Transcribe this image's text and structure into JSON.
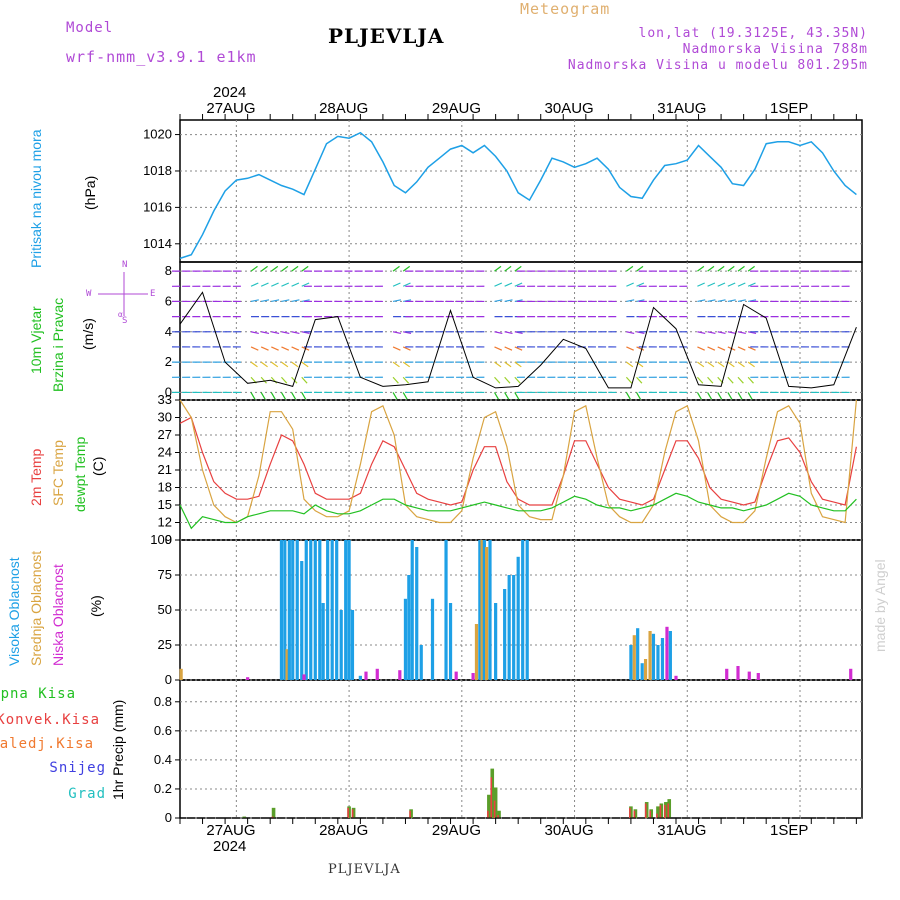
{
  "header": {
    "model_label": "Model",
    "model_name": "wrf-nmm_v3.9.1  e1km",
    "meteogram_label": "Meteogram",
    "station": "PLJEVLJA",
    "lonlat": "lon,lat (19.3125E, 43.35N)",
    "altitude": "Nadmorska Visina 788m",
    "model_altitude": "Nadmorska Visina u modelu 801.295m"
  },
  "top_dates": {
    "year": "2024",
    "days": [
      "27AUG",
      "28AUG",
      "29AUG",
      "30AUG",
      "31AUG",
      "1SEP"
    ]
  },
  "bottom_dates": {
    "year": "2024",
    "days": [
      "27AUG",
      "28AUG",
      "29AUG",
      "30AUG",
      "31AUG",
      "1SEP"
    ]
  },
  "footer_station": "PLJEVLJA",
  "watermark": "made by Angel",
  "colors": {
    "pressure": "#1ea0e6",
    "t2m": "#e84040",
    "tsfc": "#d9a441",
    "dewpt": "#22c022",
    "high_cloud": "#1ea0e6",
    "mid_cloud": "#d9a441",
    "low_cloud": "#d12bd1",
    "total_precip": "#5a9e2a",
    "conv_precip": "#e84040",
    "frozen_precip": "#f07a30",
    "snow": "#4040e0",
    "grad": "#22c0c0",
    "wind_speed": "#000000"
  },
  "panels": {
    "pressure": {
      "label": "Pritisak na nivou mora",
      "unit": "(hPa)"
    },
    "wind": {
      "label1": "10m Vjetar",
      "label2": "Brzina i Pravac",
      "unit": "(m/s)",
      "compass": {
        "n": "N",
        "w": "W",
        "e": "E",
        "s": "S",
        "alpha": "α"
      }
    },
    "temp": {
      "label1": "2m Temp",
      "label2": "SFC Temp",
      "label3": "dewpt Temp",
      "unit": "(C)"
    },
    "cloud": {
      "label1": "Visoka Oblacnost",
      "label2": "Srednja Oblacnost",
      "label3": "Niska Oblacnost",
      "unit": "(%)"
    },
    "precip": {
      "labels": [
        "Ukupna Kisa",
        "Konvek.Kisa",
        "Zaledj.Kisa",
        "Snijeg",
        "Grad"
      ],
      "unit": "1hr Precip (mm)"
    }
  },
  "chart_data": [
    {
      "type": "line",
      "name": "pressure",
      "ylim": [
        1013,
        1020.8
      ],
      "yticks": [
        1014,
        1016,
        1018,
        1020
      ],
      "x": [
        0,
        1,
        2,
        3,
        4,
        5,
        6,
        7,
        8,
        9,
        10,
        11,
        12,
        13,
        14,
        15,
        16,
        17,
        18,
        19,
        20,
        21,
        22,
        23,
        24,
        25,
        26,
        27,
        28,
        29,
        30,
        31,
        32,
        33,
        34,
        35,
        36,
        37,
        38,
        39,
        40,
        41,
        42,
        43,
        44,
        45,
        46,
        47,
        48,
        49,
        50,
        51,
        52,
        53,
        54,
        55,
        56,
        57,
        58,
        59,
        60
      ],
      "series": [
        {
          "values": [
            1013.2,
            1013.4,
            1014.5,
            1015.8,
            1016.9,
            1017.5,
            1017.6,
            1017.8,
            1017.5,
            1017.2,
            1017.0,
            1016.7,
            1018.1,
            1019.5,
            1019.9,
            1019.8,
            1020.1,
            1019.6,
            1018.5,
            1017.2,
            1016.8,
            1017.4,
            1018.2,
            1018.7,
            1019.2,
            1019.4,
            1019.0,
            1019.4,
            1018.8,
            1018.0,
            1016.8,
            1016.4,
            1017.5,
            1018.7,
            1018.5,
            1018.2,
            1018.4,
            1018.7,
            1018.1,
            1017.1,
            1016.6,
            1016.5,
            1017.5,
            1018.3,
            1018.4,
            1018.6,
            1019.4,
            1018.8,
            1018.2,
            1017.3,
            1017.2,
            1018.1,
            1019.5,
            1019.6,
            1019.6,
            1019.4,
            1019.6,
            1019.0,
            1018.0,
            1017.2,
            1016.7
          ]
        }
      ]
    },
    {
      "type": "line",
      "name": "wind_speed",
      "ylim": [
        -0.5,
        8.6
      ],
      "yticks": [
        0,
        2,
        4,
        6,
        8
      ],
      "x": [
        0,
        2,
        4,
        6,
        8,
        10,
        12,
        14,
        16,
        18,
        20,
        22,
        24,
        26,
        28,
        30,
        32,
        34,
        36,
        38,
        40,
        42,
        44,
        46,
        48,
        50,
        52,
        54,
        56,
        58,
        60
      ],
      "series": [
        {
          "values": [
            4.5,
            6.6,
            2.0,
            0.6,
            0.8,
            0.4,
            4.8,
            5.0,
            1.0,
            0.4,
            0.5,
            0.7,
            5.4,
            1.0,
            0.3,
            0.4,
            1.8,
            3.5,
            2.9,
            0.3,
            0.3,
            5.6,
            4.2,
            0.5,
            0.4,
            5.8,
            4.9,
            0.4,
            0.3,
            0.5,
            4.3
          ]
        }
      ]
    },
    {
      "type": "line",
      "name": "temperature",
      "ylim": [
        9,
        33
      ],
      "yticks": [
        9,
        12,
        15,
        18,
        21,
        24,
        27,
        30,
        33
      ],
      "x": [
        0,
        1,
        2,
        3,
        4,
        5,
        6,
        7,
        8,
        9,
        10,
        11,
        12,
        13,
        14,
        15,
        16,
        17,
        18,
        19,
        20,
        21,
        22,
        23,
        24,
        25,
        26,
        27,
        28,
        29,
        30,
        31,
        32,
        33,
        34,
        35,
        36,
        37,
        38,
        39,
        40,
        41,
        42,
        43,
        44,
        45,
        46,
        47,
        48,
        49,
        50,
        51,
        52,
        53,
        54,
        55,
        56,
        57,
        58,
        59,
        60
      ],
      "series": [
        {
          "values": [
            29,
            30,
            24,
            19,
            17,
            16,
            16,
            16.5,
            22,
            27,
            26,
            22,
            17,
            16,
            16,
            16,
            17,
            22,
            26,
            25,
            21,
            17,
            16,
            15.5,
            15,
            15.5,
            21,
            25,
            25,
            19,
            16,
            15,
            15,
            15,
            20,
            26,
            26,
            22,
            18,
            16,
            15.5,
            15,
            16,
            21,
            26,
            26,
            23,
            18,
            16,
            15.5,
            15,
            15.5,
            21,
            26,
            26.5,
            24,
            19,
            16,
            15.5,
            15,
            25
          ]
        },
        {
          "values": [
            33,
            30,
            21,
            15,
            13,
            12,
            13,
            20,
            31,
            31,
            28,
            16,
            14,
            13,
            13,
            14,
            22,
            31,
            32,
            27,
            15,
            13,
            12.5,
            12,
            12,
            14,
            23,
            30,
            31,
            25,
            15,
            13,
            12.5,
            12.5,
            20,
            31,
            32,
            23,
            15,
            13,
            12,
            12,
            15,
            24,
            31,
            32,
            26,
            15,
            13,
            12,
            12,
            14,
            23,
            31,
            32,
            29,
            17,
            13,
            12.5,
            12,
            33
          ]
        },
        {
          "values": [
            15,
            11,
            13,
            12.5,
            12,
            12,
            13,
            13.5,
            14,
            14,
            14,
            13.5,
            15,
            14,
            13.5,
            13.5,
            14,
            15,
            16,
            16,
            15,
            14.5,
            14,
            14,
            14,
            14.5,
            15,
            15.5,
            15,
            14.5,
            14,
            14,
            14,
            14.5,
            15.5,
            16.5,
            16,
            15,
            14.5,
            14.5,
            14,
            14.5,
            15,
            16,
            17,
            16.5,
            15.5,
            15,
            14.5,
            14.5,
            14,
            14.5,
            15,
            16,
            17,
            16.5,
            15,
            14.5,
            14,
            14,
            16
          ]
        }
      ]
    },
    {
      "type": "bar",
      "name": "cloud_cover",
      "ylim": [
        0,
        100
      ],
      "yticks": [
        0,
        25,
        50,
        75,
        100
      ],
      "bars": [
        {
          "s": "high",
          "x": 9.0,
          "v": 100
        },
        {
          "s": "high",
          "x": 9.3,
          "v": 100
        },
        {
          "s": "mid",
          "x": 9.5,
          "v": 22
        },
        {
          "s": "high",
          "x": 9.7,
          "v": 100
        },
        {
          "s": "high",
          "x": 10.0,
          "v": 100
        },
        {
          "s": "high",
          "x": 10.4,
          "v": 100
        },
        {
          "s": "high",
          "x": 10.8,
          "v": 85
        },
        {
          "s": "high",
          "x": 11.2,
          "v": 100
        },
        {
          "s": "high",
          "x": 11.6,
          "v": 100
        },
        {
          "s": "high",
          "x": 12.0,
          "v": 100
        },
        {
          "s": "high",
          "x": 12.4,
          "v": 100
        },
        {
          "s": "high",
          "x": 12.7,
          "v": 55
        },
        {
          "s": "high",
          "x": 13.1,
          "v": 100
        },
        {
          "s": "high",
          "x": 13.5,
          "v": 100
        },
        {
          "s": "high",
          "x": 13.9,
          "v": 100
        },
        {
          "s": "high",
          "x": 14.3,
          "v": 50
        },
        {
          "s": "high",
          "x": 14.7,
          "v": 100
        },
        {
          "s": "high",
          "x": 15.0,
          "v": 100
        },
        {
          "s": "high",
          "x": 15.3,
          "v": 50
        },
        {
          "s": "high",
          "x": 16.0,
          "v": 3
        },
        {
          "s": "high",
          "x": 20.0,
          "v": 58
        },
        {
          "s": "high",
          "x": 20.3,
          "v": 75
        },
        {
          "s": "high",
          "x": 20.6,
          "v": 100
        },
        {
          "s": "high",
          "x": 21.0,
          "v": 95
        },
        {
          "s": "high",
          "x": 21.4,
          "v": 25
        },
        {
          "s": "high",
          "x": 22.4,
          "v": 58
        },
        {
          "s": "high",
          "x": 23.6,
          "v": 100
        },
        {
          "s": "high",
          "x": 24.0,
          "v": 55
        },
        {
          "s": "mid",
          "x": 26.3,
          "v": 40
        },
        {
          "s": "high",
          "x": 26.6,
          "v": 100
        },
        {
          "s": "mid",
          "x": 26.8,
          "v": 100
        },
        {
          "s": "high",
          "x": 27.0,
          "v": 100
        },
        {
          "s": "mid",
          "x": 27.2,
          "v": 95
        },
        {
          "s": "high",
          "x": 27.5,
          "v": 100
        },
        {
          "s": "high",
          "x": 28.0,
          "v": 55
        },
        {
          "s": "high",
          "x": 28.8,
          "v": 65
        },
        {
          "s": "high",
          "x": 29.2,
          "v": 75
        },
        {
          "s": "high",
          "x": 29.6,
          "v": 75
        },
        {
          "s": "high",
          "x": 30.0,
          "v": 88
        },
        {
          "s": "high",
          "x": 30.4,
          "v": 100
        },
        {
          "s": "high",
          "x": 30.8,
          "v": 100
        },
        {
          "s": "high",
          "x": 40.0,
          "v": 25
        },
        {
          "s": "mid",
          "x": 40.3,
          "v": 32
        },
        {
          "s": "high",
          "x": 40.6,
          "v": 37
        },
        {
          "s": "high",
          "x": 41.0,
          "v": 12
        },
        {
          "s": "mid",
          "x": 41.3,
          "v": 15
        },
        {
          "s": "mid",
          "x": 41.7,
          "v": 35
        },
        {
          "s": "high",
          "x": 42.0,
          "v": 33
        },
        {
          "s": "high",
          "x": 42.4,
          "v": 25
        },
        {
          "s": "high",
          "x": 42.8,
          "v": 30
        },
        {
          "s": "low",
          "x": 43.2,
          "v": 38
        },
        {
          "s": "high",
          "x": 43.5,
          "v": 35
        },
        {
          "s": "low",
          "x": 44.0,
          "v": 3
        },
        {
          "s": "low",
          "x": 11.0,
          "v": 4
        },
        {
          "s": "low",
          "x": 6.0,
          "v": 2
        },
        {
          "s": "mid",
          "x": 0.1,
          "v": 8
        },
        {
          "s": "low",
          "x": 16.5,
          "v": 6
        },
        {
          "s": "low",
          "x": 17.5,
          "v": 8
        },
        {
          "s": "low",
          "x": 19.5,
          "v": 7
        },
        {
          "s": "low",
          "x": 24.5,
          "v": 6
        },
        {
          "s": "low",
          "x": 26.0,
          "v": 5
        },
        {
          "s": "low",
          "x": 48.5,
          "v": 8
        },
        {
          "s": "low",
          "x": 49.5,
          "v": 10
        },
        {
          "s": "low",
          "x": 50.5,
          "v": 6
        },
        {
          "s": "low",
          "x": 51.3,
          "v": 5
        },
        {
          "s": "low",
          "x": 59.5,
          "v": 8
        }
      ]
    },
    {
      "type": "bar",
      "name": "precip",
      "ylim": [
        0,
        0.95
      ],
      "yticks": [
        0,
        0.2,
        0.4,
        0.6,
        0.8
      ],
      "bars": [
        {
          "x": 5.7,
          "v": 0.01,
          "c": 0.0
        },
        {
          "x": 8.3,
          "v": 0.07,
          "c": 0.01
        },
        {
          "x": 15.0,
          "v": 0.08,
          "c": 0.07
        },
        {
          "x": 15.4,
          "v": 0.07,
          "c": 0.06
        },
        {
          "x": 20.5,
          "v": 0.06,
          "c": 0.05
        },
        {
          "x": 27.4,
          "v": 0.16,
          "c": 0.05
        },
        {
          "x": 27.7,
          "v": 0.34,
          "c": 0.28
        },
        {
          "x": 28.0,
          "v": 0.21,
          "c": 0.12
        },
        {
          "x": 28.3,
          "v": 0.05,
          "c": 0.02
        },
        {
          "x": 40.0,
          "v": 0.08,
          "c": 0.07
        },
        {
          "x": 40.4,
          "v": 0.06,
          "c": 0.05
        },
        {
          "x": 41.4,
          "v": 0.11,
          "c": 0.1
        },
        {
          "x": 41.8,
          "v": 0.06,
          "c": 0.05
        },
        {
          "x": 42.4,
          "v": 0.08,
          "c": 0.03
        },
        {
          "x": 42.7,
          "v": 0.1,
          "c": 0.09
        },
        {
          "x": 43.1,
          "v": 0.11,
          "c": 0.09
        },
        {
          "x": 43.4,
          "v": 0.13,
          "c": 0.1
        }
      ]
    }
  ]
}
